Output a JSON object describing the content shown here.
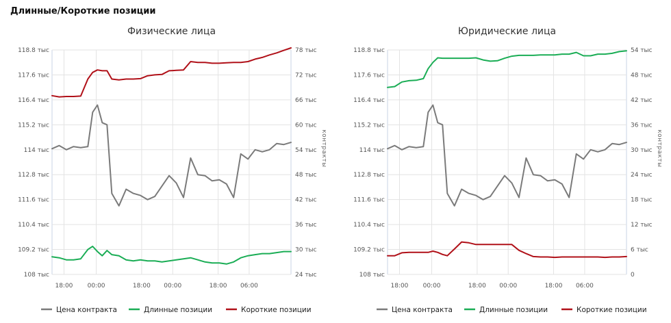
{
  "page": {
    "title": "Длинные/Короткие позиции"
  },
  "colors": {
    "price": "#7a7a7a",
    "long": "#1aad55",
    "short": "#b01018",
    "grid": "#e3e3e3",
    "axis": "#c8d3e6"
  },
  "chart_data": [
    {
      "type": "line",
      "title": "Физические лица",
      "xlabel": "",
      "ylabel_left": "",
      "ylabel_right": "контракты",
      "x_ticks": [
        "18:00",
        "00:00",
        "18:00",
        "00:00",
        "18:00",
        "06:00"
      ],
      "y_left_ticks": [
        "108 тыс",
        "109.2 тыс",
        "110.4 тыс",
        "111.6 тыс",
        "112.8 тыс",
        "114 тыс",
        "115.2 тыс",
        "116.4 тыс",
        "117.6 тыс",
        "118.8 тыс"
      ],
      "y_right_ticks": [
        "24 тыс",
        "30 тыс",
        "36 тыс",
        "42 тыс",
        "48 тыс",
        "54 тыс",
        "60 тыс",
        "66 тыс",
        "72 тыс",
        "78 тыс"
      ],
      "ylim_left": [
        108000,
        118800
      ],
      "ylim_right": [
        24000,
        78000
      ],
      "grid": true,
      "legend": "bottom",
      "x_index": [
        0,
        3,
        6,
        9,
        12,
        15,
        17,
        19,
        21,
        23,
        25,
        28,
        31,
        34,
        37,
        40,
        43,
        46,
        49,
        52,
        55,
        58,
        61,
        64,
        67,
        70,
        73,
        76,
        79,
        82,
        85,
        88,
        91,
        94,
        97,
        100
      ],
      "series": [
        {
          "name": "Цена контракта",
          "axis": "left",
          "color_key": "price",
          "values": [
            114050,
            114200,
            114000,
            114150,
            114100,
            114150,
            115800,
            116150,
            115300,
            115200,
            111900,
            111300,
            112100,
            111900,
            111800,
            111600,
            111750,
            112250,
            112750,
            112400,
            111700,
            113600,
            112800,
            112750,
            112500,
            112550,
            112350,
            111700,
            113800,
            113550,
            114000,
            113900,
            114000,
            114300,
            114250,
            114350
          ]
        },
        {
          "name": "Длинные позиции",
          "axis": "left",
          "color_key": "long",
          "values": [
            108850,
            108800,
            108700,
            108700,
            108750,
            109200,
            109350,
            109100,
            108900,
            109150,
            108950,
            108900,
            108700,
            108650,
            108700,
            108650,
            108650,
            108600,
            108650,
            108700,
            108750,
            108800,
            108700,
            108600,
            108550,
            108550,
            108500,
            108600,
            108800,
            108900,
            108950,
            109000,
            109000,
            109050,
            109100,
            109100
          ]
        },
        {
          "name": "Короткие позиции",
          "axis": "right",
          "color_key": "short",
          "values": [
            67000,
            66700,
            66800,
            66800,
            66900,
            71000,
            72600,
            73200,
            73000,
            73000,
            71000,
            70800,
            71000,
            71000,
            71100,
            71800,
            72000,
            72100,
            73000,
            73100,
            73200,
            75200,
            75000,
            75000,
            74800,
            74800,
            74900,
            75000,
            75000,
            75200,
            75800,
            76200,
            76800,
            77300,
            77900,
            78500
          ]
        }
      ]
    },
    {
      "type": "line",
      "title": "Юридические лица",
      "xlabel": "",
      "ylabel_left": "",
      "ylabel_right": "контракты",
      "x_ticks": [
        "18:00",
        "00:00",
        "18:00",
        "00:00",
        "18:00",
        "06:00"
      ],
      "y_left_ticks": [
        "108 тыс",
        "109.2 тыс",
        "110.4 тыс",
        "111.6 тыс",
        "112.8 тыс",
        "114 тыс",
        "115.2 тыс",
        "116.4 тыс",
        "117.6 тыс",
        "118.8 тыс"
      ],
      "y_right_ticks": [
        "0",
        "6 тыс",
        "12 тыс",
        "18 тыс",
        "24 тыс",
        "30 тыс",
        "36 тыс",
        "42 тыс",
        "48 тыс",
        "54 тыс"
      ],
      "ylim_left": [
        108000,
        118800
      ],
      "ylim_right": [
        0,
        54000
      ],
      "grid": true,
      "legend": "bottom",
      "x_index": [
        0,
        3,
        6,
        9,
        12,
        15,
        17,
        19,
        21,
        23,
        25,
        28,
        31,
        34,
        37,
        40,
        43,
        46,
        49,
        52,
        55,
        58,
        61,
        64,
        67,
        70,
        73,
        76,
        79,
        82,
        85,
        88,
        91,
        94,
        97,
        100
      ],
      "series": [
        {
          "name": "Цена контракта",
          "axis": "left",
          "color_key": "price",
          "values": [
            114050,
            114200,
            114000,
            114150,
            114100,
            114150,
            115800,
            116150,
            115300,
            115200,
            111900,
            111300,
            112100,
            111900,
            111800,
            111600,
            111750,
            112250,
            112750,
            112400,
            111700,
            113600,
            112800,
            112750,
            112500,
            112550,
            112350,
            111700,
            113800,
            113550,
            114000,
            113900,
            114000,
            114300,
            114250,
            114350
          ]
        },
        {
          "name": "Длинные позиции",
          "axis": "right",
          "color_key": "long",
          "values": [
            45000,
            45200,
            46300,
            46600,
            46700,
            47100,
            49500,
            51000,
            52100,
            52000,
            52000,
            52000,
            52000,
            52000,
            52100,
            51600,
            51300,
            51400,
            52000,
            52500,
            52700,
            52700,
            52700,
            52800,
            52800,
            52800,
            53000,
            53000,
            53400,
            52600,
            52600,
            53000,
            53000,
            53200,
            53600,
            53800
          ]
        },
        {
          "name": "Короткие позиции",
          "axis": "right",
          "color_key": "short",
          "values": [
            4500,
            4500,
            5200,
            5300,
            5300,
            5300,
            5300,
            5600,
            5300,
            4800,
            4500,
            6100,
            7800,
            7600,
            7200,
            7200,
            7200,
            7200,
            7200,
            7200,
            5800,
            5000,
            4300,
            4200,
            4200,
            4100,
            4200,
            4200,
            4200,
            4200,
            4200,
            4200,
            4100,
            4200,
            4200,
            4300
          ]
        }
      ]
    }
  ]
}
